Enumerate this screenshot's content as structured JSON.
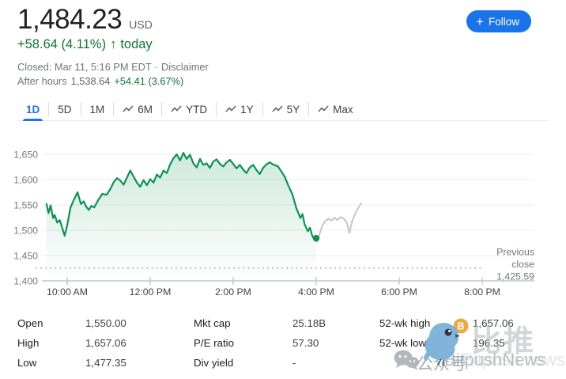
{
  "header": {
    "price": "1,484.23",
    "currency": "USD",
    "change": "+58.64 (4.11%)",
    "arrow": "↑",
    "change_suffix": "today",
    "closed_text": "Closed: Mar 11, 5:16 PM EDT",
    "dot_separator": "·",
    "disclaimer": "Disclaimer",
    "after_hours_label": "After hours",
    "after_hours_price": "1,538.64",
    "after_hours_change": "+54.41 (3.67%)",
    "follow": {
      "plus": "+",
      "label": "Follow"
    }
  },
  "tabs": [
    {
      "label": "1D",
      "active": true,
      "icon": false
    },
    {
      "label": "5D",
      "active": false,
      "icon": false
    },
    {
      "label": "1M",
      "active": false,
      "icon": false
    },
    {
      "label": "6M",
      "active": false,
      "icon": true
    },
    {
      "label": "YTD",
      "active": false,
      "icon": true
    },
    {
      "label": "1Y",
      "active": false,
      "icon": true
    },
    {
      "label": "5Y",
      "active": false,
      "icon": true
    },
    {
      "label": "Max",
      "active": false,
      "icon": true
    }
  ],
  "chart_data": {
    "type": "line",
    "title": "1D intraday price chart",
    "ylim": [
      1400,
      1672
    ],
    "y_ticks": [
      {
        "value": 1400,
        "label": "1,400"
      },
      {
        "value": 1450,
        "label": "1,450"
      },
      {
        "value": 1500,
        "label": "1,500"
      },
      {
        "value": 1550,
        "label": "1,550"
      },
      {
        "value": 1600,
        "label": "1,600"
      },
      {
        "value": 1650,
        "label": "1,650"
      }
    ],
    "x_ticks": [
      {
        "t": 10,
        "label": "10:00 AM"
      },
      {
        "t": 12,
        "label": "12:00 PM"
      },
      {
        "t": 14,
        "label": "2:00 PM"
      },
      {
        "t": 16,
        "label": "4:00 PM"
      },
      {
        "t": 18,
        "label": "6:00 PM"
      },
      {
        "t": 20,
        "label": "8:00 PM"
      }
    ],
    "grid": true,
    "legend": "none",
    "previous_close": {
      "value": 1425.59,
      "lines": [
        "Previous",
        "close",
        "1,425.59"
      ]
    },
    "end_dot": {
      "t": 16.0,
      "v": 1484.23
    },
    "series": [
      {
        "name": "regular_hours",
        "color": "#0f9154",
        "points": [
          [
            9.5,
            1552
          ],
          [
            9.55,
            1534
          ],
          [
            9.6,
            1549
          ],
          [
            9.66,
            1524
          ],
          [
            9.7,
            1530
          ],
          [
            9.76,
            1515
          ],
          [
            9.82,
            1520
          ],
          [
            9.88,
            1505
          ],
          [
            9.94,
            1489
          ],
          [
            10.0,
            1510
          ],
          [
            10.08,
            1545
          ],
          [
            10.16,
            1560
          ],
          [
            10.25,
            1575
          ],
          [
            10.33,
            1552
          ],
          [
            10.4,
            1557
          ],
          [
            10.45,
            1548
          ],
          [
            10.52,
            1540
          ],
          [
            10.58,
            1548
          ],
          [
            10.65,
            1545
          ],
          [
            10.75,
            1560
          ],
          [
            10.85,
            1572
          ],
          [
            10.95,
            1570
          ],
          [
            11.05,
            1583
          ],
          [
            11.12,
            1595
          ],
          [
            11.2,
            1603
          ],
          [
            11.28,
            1598
          ],
          [
            11.36,
            1590
          ],
          [
            11.44,
            1604
          ],
          [
            11.52,
            1618
          ],
          [
            11.6,
            1606
          ],
          [
            11.68,
            1594
          ],
          [
            11.76,
            1586
          ],
          [
            11.84,
            1599
          ],
          [
            11.92,
            1589
          ],
          [
            12.0,
            1601
          ],
          [
            12.08,
            1594
          ],
          [
            12.16,
            1610
          ],
          [
            12.24,
            1604
          ],
          [
            12.32,
            1618
          ],
          [
            12.4,
            1613
          ],
          [
            12.48,
            1630
          ],
          [
            12.56,
            1642
          ],
          [
            12.64,
            1650
          ],
          [
            12.72,
            1638
          ],
          [
            12.8,
            1653
          ],
          [
            12.88,
            1641
          ],
          [
            12.96,
            1649
          ],
          [
            13.04,
            1632
          ],
          [
            13.12,
            1624
          ],
          [
            13.2,
            1641
          ],
          [
            13.28,
            1629
          ],
          [
            13.36,
            1632
          ],
          [
            13.44,
            1623
          ],
          [
            13.52,
            1636
          ],
          [
            13.6,
            1640
          ],
          [
            13.68,
            1631
          ],
          [
            13.76,
            1626
          ],
          [
            13.84,
            1634
          ],
          [
            13.92,
            1639
          ],
          [
            14.0,
            1631
          ],
          [
            14.08,
            1622
          ],
          [
            14.16,
            1629
          ],
          [
            14.24,
            1620
          ],
          [
            14.32,
            1613
          ],
          [
            14.4,
            1624
          ],
          [
            14.48,
            1629
          ],
          [
            14.56,
            1619
          ],
          [
            14.64,
            1611
          ],
          [
            14.72,
            1623
          ],
          [
            14.8,
            1630
          ],
          [
            14.88,
            1634
          ],
          [
            14.96,
            1630
          ],
          [
            15.08,
            1626
          ],
          [
            15.24,
            1606
          ],
          [
            15.33,
            1588
          ],
          [
            15.43,
            1570
          ],
          [
            15.52,
            1544
          ],
          [
            15.62,
            1524
          ],
          [
            15.67,
            1532
          ],
          [
            15.72,
            1512
          ],
          [
            15.8,
            1498
          ],
          [
            15.85,
            1505
          ],
          [
            15.9,
            1490
          ],
          [
            15.95,
            1482
          ],
          [
            16.0,
            1484.23
          ]
        ]
      },
      {
        "name": "after_hours",
        "color": "#c2c6ca",
        "points": [
          [
            16.02,
            1477
          ],
          [
            16.08,
            1492
          ],
          [
            16.15,
            1510
          ],
          [
            16.22,
            1518
          ],
          [
            16.3,
            1523
          ],
          [
            16.37,
            1519
          ],
          [
            16.44,
            1525
          ],
          [
            16.51,
            1520
          ],
          [
            16.58,
            1526
          ],
          [
            16.66,
            1523
          ],
          [
            16.74,
            1515
          ],
          [
            16.8,
            1494
          ],
          [
            16.86,
            1516
          ],
          [
            16.93,
            1531
          ],
          [
            17.0,
            1542
          ],
          [
            17.08,
            1553
          ]
        ]
      }
    ]
  },
  "stats": {
    "columns": [
      {
        "rows": [
          {
            "label": "Open",
            "value": "1,550.00"
          },
          {
            "label": "High",
            "value": "1,657.06"
          },
          {
            "label": "Low",
            "value": "1,477.35"
          }
        ]
      },
      {
        "rows": [
          {
            "label": "Mkt cap",
            "value": "25.18B"
          },
          {
            "label": "P/E ratio",
            "value": "57.30"
          },
          {
            "label": "Div yield",
            "value": "-"
          }
        ]
      },
      {
        "rows": [
          {
            "label": "52-wk high",
            "value": "1,657.06"
          },
          {
            "label": "52-wk low",
            "value": "196.35"
          }
        ]
      }
    ]
  },
  "watermark": {
    "text_cn": "比推",
    "text_account": "公众号",
    "text_brand": "BitpushNews",
    "text_ghost": "Bitpush.news",
    "coin_symbol": "B"
  },
  "colors": {
    "accent_blue": "#1a73e8",
    "positive_green": "#137333",
    "line_green": "#0f9154",
    "after_hours_gray": "#c2c6ca"
  }
}
